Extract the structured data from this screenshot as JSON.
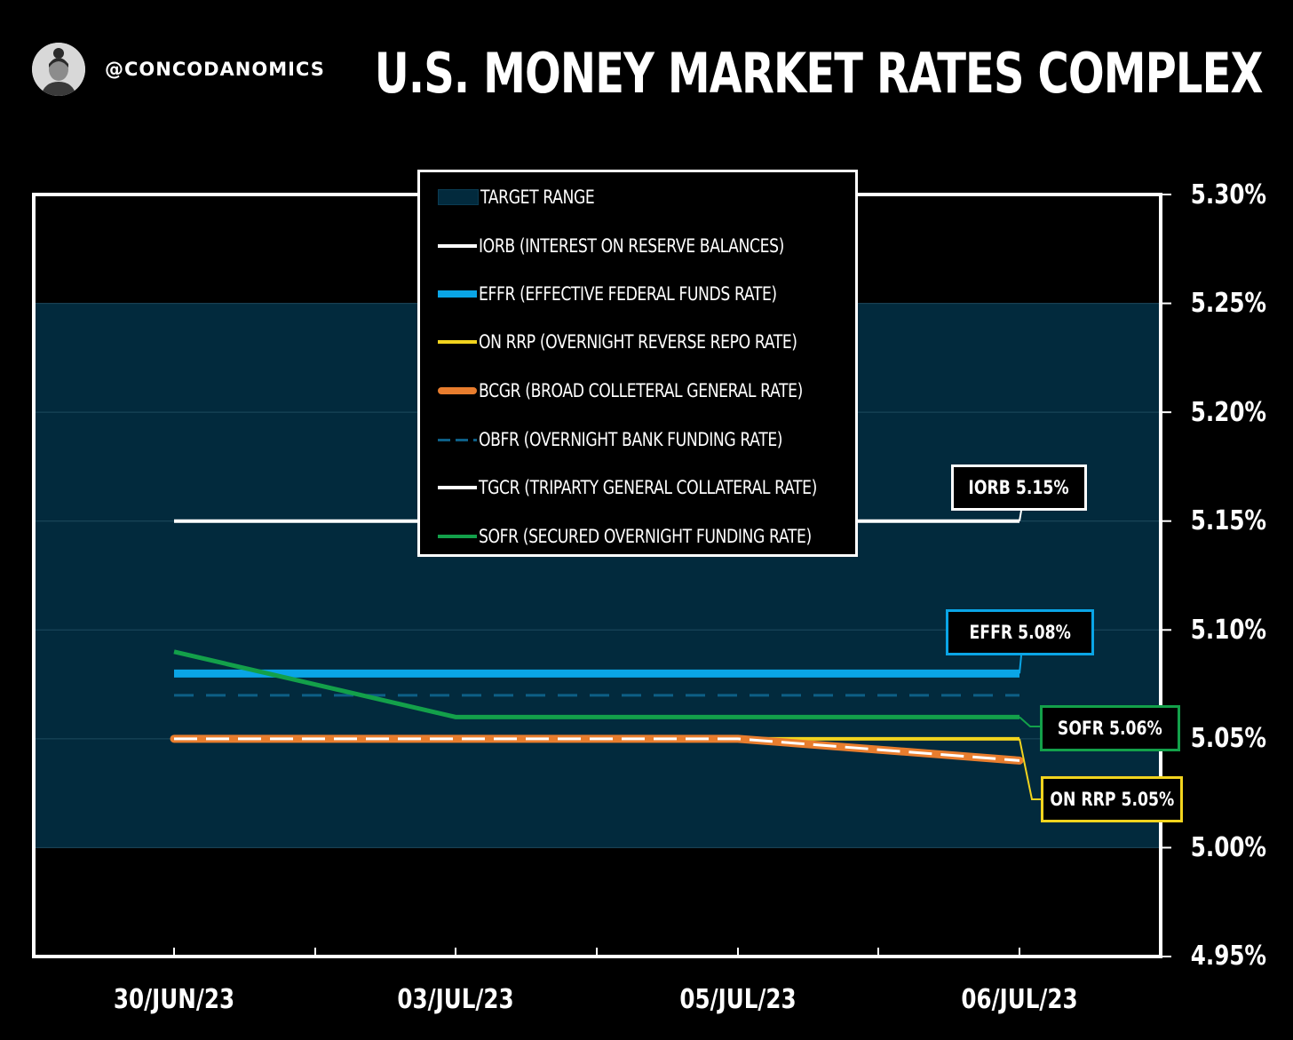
{
  "header": {
    "handle": "@CONCODANOMICS",
    "title": "U.S. MONEY MARKET RATES COMPLEX"
  },
  "colors": {
    "background": "#000000",
    "target_range": "#022a3d",
    "iorb": "#ffffff",
    "effr": "#0aa5e6",
    "on_rrp": "#f2d41e",
    "bcgr": "#e87d2e",
    "obfr": "#0d5f86",
    "tgcr": "#ffffff",
    "sofr": "#13a04a"
  },
  "legend": {
    "items": [
      {
        "label": "TARGET RANGE",
        "style": "band",
        "color": "#022a3d"
      },
      {
        "label": "IORB (INTEREST ON RESERVE BALANCES)",
        "style": "solid",
        "color": "#ffffff"
      },
      {
        "label": "EFFR (EFFECTIVE FEDERAL FUNDS RATE)",
        "style": "solid-thick",
        "color": "#0aa5e6"
      },
      {
        "label": "ON RRP (OVERNIGHT REVERSE REPO RATE)",
        "style": "solid",
        "color": "#f2d41e"
      },
      {
        "label": "BCGR (BROAD COLLETERAL GENERAL RATE)",
        "style": "solid-thick",
        "color": "#e87d2e"
      },
      {
        "label": "OBFR (OVERNIGHT BANK FUNDING RATE)",
        "style": "dashed",
        "color": "#0d5f86"
      },
      {
        "label": "TGCR (TRIPARTY GENERAL COLLATERAL RATE)",
        "style": "solid",
        "color": "#ffffff"
      },
      {
        "label": "SOFR (SECURED OVERNIGHT FUNDING RATE)",
        "style": "solid",
        "color": "#13a04a"
      }
    ]
  },
  "callouts": {
    "iorb": "IORB 5.15%",
    "effr": "EFFR 5.08%",
    "sofr": "SOFR 5.06%",
    "on_rrp": "ON RRP 5.05%"
  },
  "chart_data": {
    "type": "line",
    "title": "U.S. MONEY MARKET RATES COMPLEX",
    "categories": [
      "30/JUN/23",
      "03/JUL/23",
      "05/JUL/23",
      "06/JUL/23"
    ],
    "x_tick_labels": [
      "30/JUN/23",
      "03/JUL/23",
      "05/JUL/23",
      "06/JUL/23"
    ],
    "y_tick_labels": [
      "5.30%",
      "5.25%",
      "5.20%",
      "5.15%",
      "5.10%",
      "5.05%",
      "5.00%",
      "4.95%"
    ],
    "ylim": [
      4.95,
      5.3
    ],
    "y_axis_position": "right",
    "grid": true,
    "legend_position": "top-center",
    "target_range": [
      5.0,
      5.25
    ],
    "series": [
      {
        "name": "IORB",
        "values": [
          5.15,
          5.15,
          5.15,
          5.15
        ]
      },
      {
        "name": "EFFR",
        "values": [
          5.08,
          5.08,
          5.08,
          5.08
        ]
      },
      {
        "name": "ON RRP",
        "values": [
          5.05,
          5.05,
          5.05,
          5.05
        ]
      },
      {
        "name": "BCGR",
        "values": [
          5.05,
          5.05,
          5.05,
          5.04
        ]
      },
      {
        "name": "OBFR",
        "values": [
          5.07,
          5.07,
          5.07,
          5.07
        ]
      },
      {
        "name": "TGCR",
        "values": [
          5.05,
          5.05,
          5.05,
          5.04
        ]
      },
      {
        "name": "SOFR",
        "values": [
          5.09,
          5.06,
          5.06,
          5.06
        ]
      }
    ]
  }
}
